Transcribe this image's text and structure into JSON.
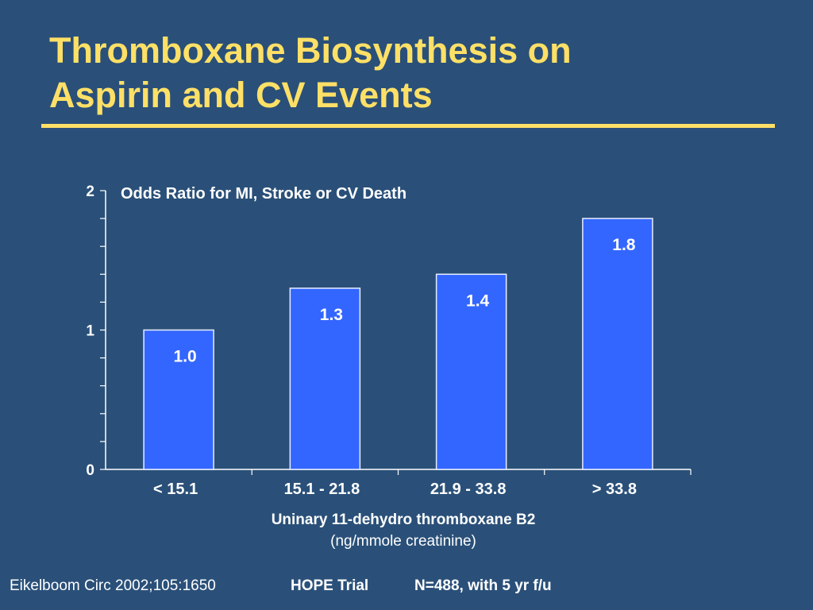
{
  "slide": {
    "title_line1": "Thromboxane Biosynthesis on",
    "title_line2": "Aspirin and CV Events"
  },
  "chart_data": {
    "type": "bar",
    "title": "Odds Ratio for MI, Stroke or CV Death",
    "categories": [
      "< 15.1",
      "15.1 - 21.8",
      "21.9 - 33.8",
      "> 33.8"
    ],
    "values": [
      1.0,
      1.3,
      1.4,
      1.8
    ],
    "data_labels": [
      "1.0",
      "1.3",
      "1.4",
      "1.8"
    ],
    "xlabel": "Uninary 11-dehydro thromboxane B2",
    "xlabel_units": "(ng/mmole creatinine)",
    "ylabel": "",
    "ylim": [
      0,
      2
    ],
    "y_ticks": [
      0,
      1,
      2
    ],
    "y_tick_labels": [
      "0",
      "1",
      "2"
    ],
    "y_minor_step": 0.2,
    "grid": false,
    "legend": "none",
    "colors": {
      "bar": "#3366ff",
      "bar_border": "#e8eeff",
      "axis": "#ffffff",
      "text": "#ffffff"
    }
  },
  "footer": {
    "citation": "Eikelboom Circ 2002;105:1650",
    "trial": "HOPE Trial",
    "n_note": "N=488, with 5 yr f/u"
  }
}
